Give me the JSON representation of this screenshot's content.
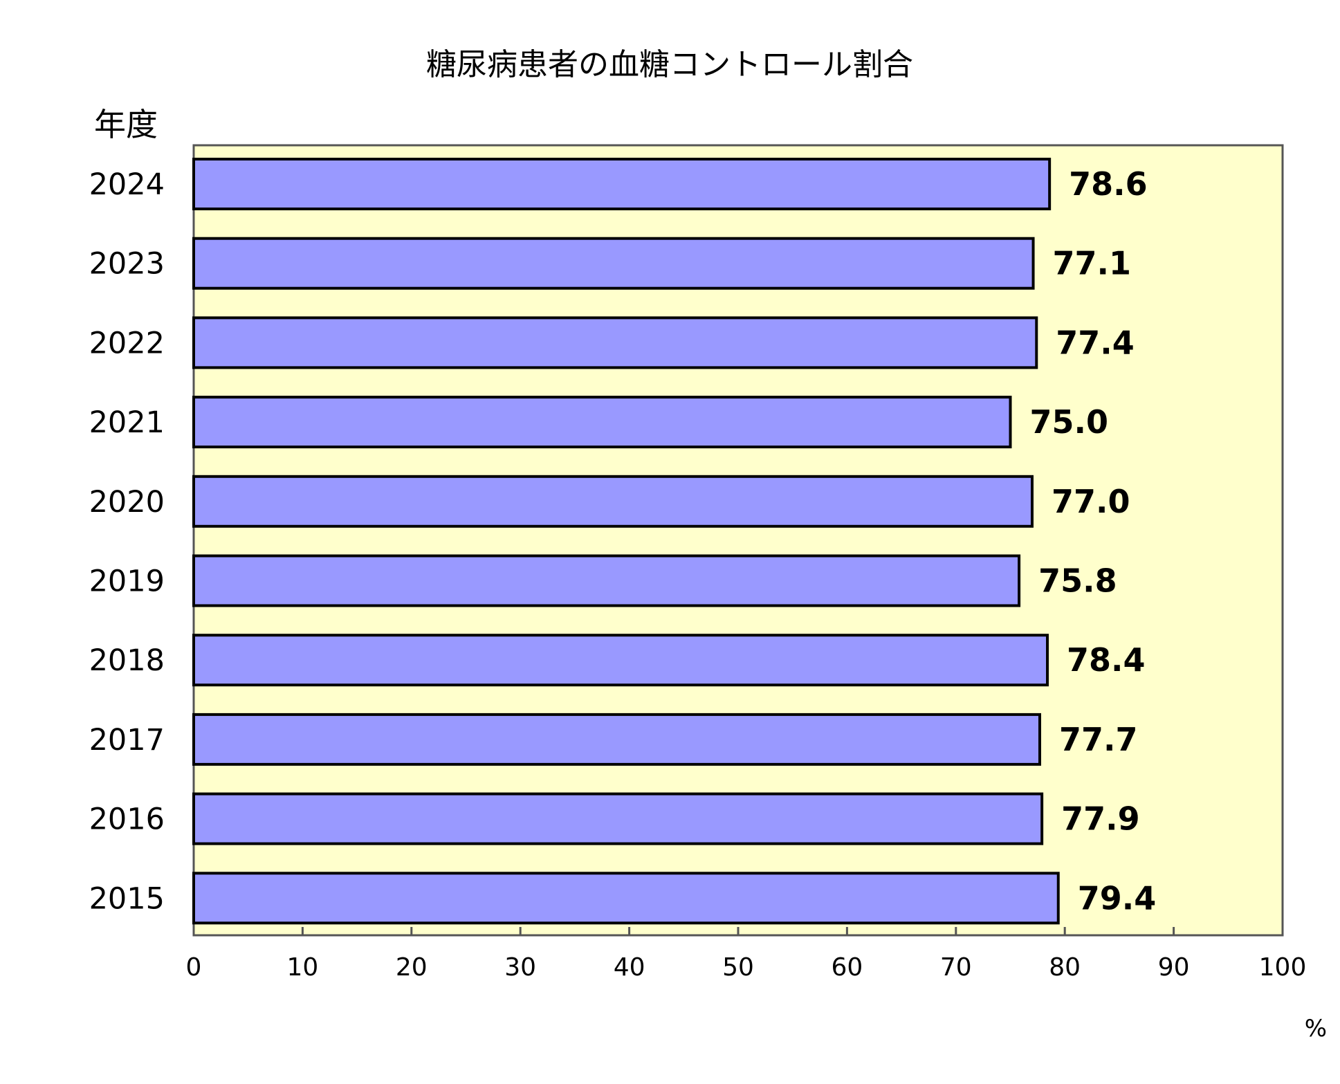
{
  "chart_data": {
    "type": "bar",
    "orientation": "horizontal",
    "title": "糖尿病患者の血糖コントロール割合",
    "ylabel": "年度",
    "xunit": "%",
    "categories": [
      "2024",
      "2023",
      "2022",
      "2021",
      "2020",
      "2019",
      "2018",
      "2017",
      "2016",
      "2015"
    ],
    "values": [
      78.6,
      77.1,
      77.4,
      75.0,
      77.0,
      75.8,
      78.4,
      77.7,
      77.9,
      79.4
    ],
    "value_labels": [
      "78.6",
      "77.1",
      "77.4",
      "75.0",
      "77.0",
      "75.8",
      "78.4",
      "77.7",
      "77.9",
      "79.4"
    ],
    "xlim": [
      0,
      100
    ],
    "xticks": [
      0,
      10,
      20,
      30,
      40,
      50,
      60,
      70,
      80,
      90,
      100
    ],
    "grid": false,
    "legend": "none",
    "colors": {
      "bar_fill": "#9999ff",
      "bar_stroke": "#000000",
      "plot_background": "#ffffcc",
      "axis": "#555555"
    }
  }
}
